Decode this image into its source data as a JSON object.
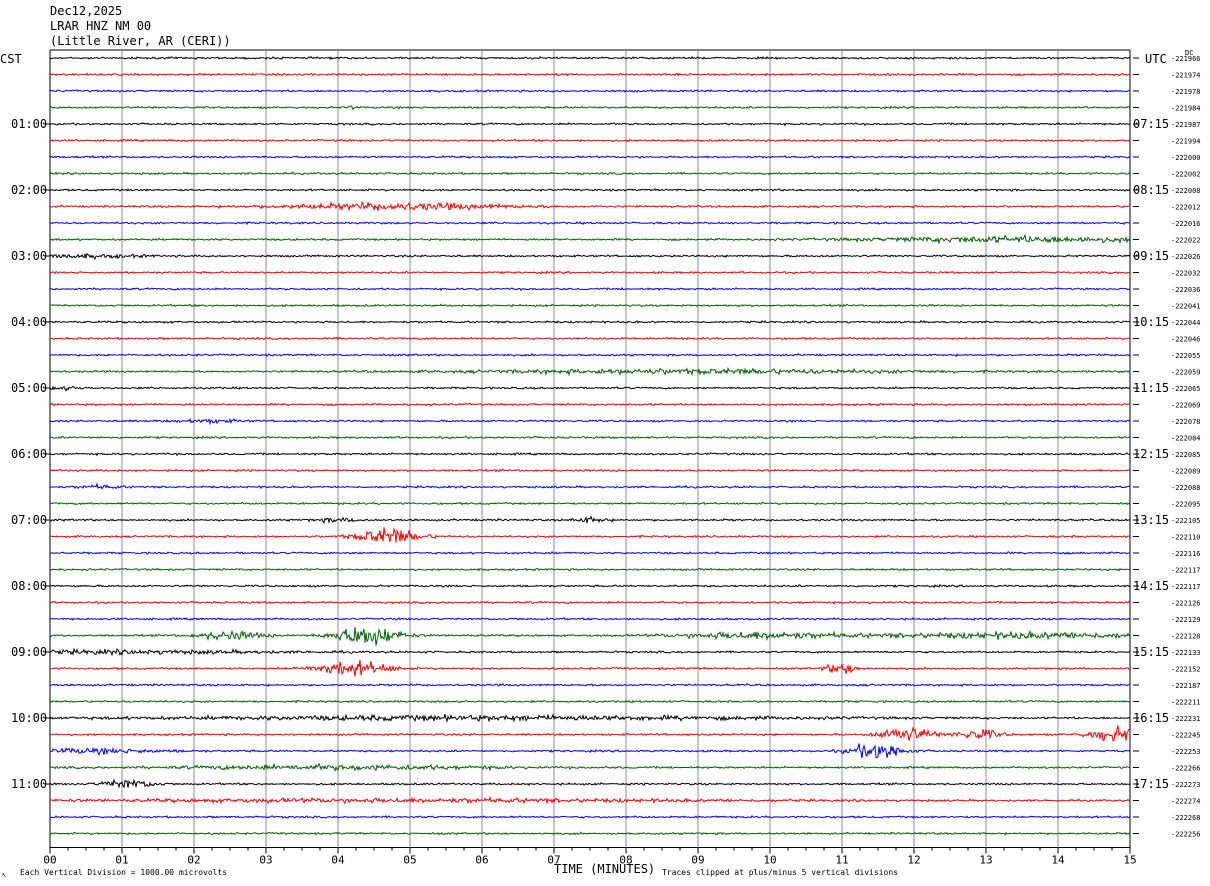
{
  "header": {
    "date": "Dec12,2025",
    "station": "LRAR HNZ NM 00",
    "location": "(Little River, AR (CERI))"
  },
  "left_zone": "CST",
  "right_zone": "UTC",
  "dc_label": "DC",
  "footer": {
    "left": "Each Vertical Division = 1000.00 microvolts",
    "center": "TIME (MINUTES)",
    "right": "Traces clipped at plus/minus 5 vertical divisions",
    "corner": "↖"
  },
  "colors": [
    "#000000",
    "#ff0000",
    "#0000ff",
    "#006400"
  ],
  "chart_data": {
    "type": "line",
    "title": "",
    "xlabel": "TIME (MINUTES)",
    "xlim": [
      0,
      15
    ],
    "x_ticks": [
      "00",
      "01",
      "02",
      "03",
      "04",
      "05",
      "06",
      "07",
      "08",
      "09",
      "10",
      "11",
      "12",
      "13",
      "14",
      "15"
    ],
    "left_hour_labels": [
      "01:00",
      "02:00",
      "03:00",
      "04:00",
      "05:00",
      "06:00",
      "07:00",
      "08:00",
      "09:00",
      "10:00",
      "11:00"
    ],
    "right_hour_labels": [
      "07:15",
      "08:15",
      "09:15",
      "10:15",
      "11:15",
      "12:15",
      "13:15",
      "14:15",
      "15:15",
      "16:15",
      "17:15"
    ],
    "dc_offsets": [
      "-221966",
      "-221974",
      "-221978",
      "-221984",
      "-221987",
      "-221994",
      "-222000",
      "-222002",
      "-222008",
      "-222012",
      "-222016",
      "-222022",
      "-222026",
      "-222032",
      "-222036",
      "-222041",
      "-222044",
      "-222046",
      "-222055",
      "-222059",
      "-222065",
      "-222069",
      "-222078",
      "-222084",
      "-222085",
      "-222089",
      "-222088",
      "-222095",
      "-222105",
      "-222110",
      "-222116",
      "-222117",
      "-222117",
      "-222126",
      "-222129",
      "-222128",
      "-222133",
      "-222152",
      "-222187",
      "-222211",
      "-222231",
      "-222245",
      "-222253",
      "-222266",
      "-222273",
      "-222274",
      "-222268",
      "-222256"
    ],
    "events": [
      {
        "trace": 3,
        "t": 4.2,
        "amp": 4,
        "dur": 0.05
      },
      {
        "trace": 9,
        "t": 4.8,
        "amp": 3,
        "dur": 2.2
      },
      {
        "trace": 11,
        "t": 13.5,
        "amp": 2.5,
        "dur": 3
      },
      {
        "trace": 12,
        "t": 0.4,
        "amp": 1.5,
        "dur": 1.2
      },
      {
        "trace": 19,
        "t": 9.0,
        "amp": 2,
        "dur": 4
      },
      {
        "trace": 20,
        "t": 0.2,
        "amp": 1.5,
        "dur": 0.3
      },
      {
        "trace": 22,
        "t": 2.2,
        "amp": 1.5,
        "dur": 0.6
      },
      {
        "trace": 26,
        "t": 0.7,
        "amp": 1.5,
        "dur": 0.4
      },
      {
        "trace": 28,
        "t": 4.0,
        "amp": 1.5,
        "dur": 0.5
      },
      {
        "trace": 28,
        "t": 7.5,
        "amp": 2.5,
        "dur": 0.3
      },
      {
        "trace": 29,
        "t": 4.7,
        "amp": 8,
        "dur": 0.6
      },
      {
        "trace": 35,
        "t": 2.5,
        "amp": 4,
        "dur": 0.6
      },
      {
        "trace": 35,
        "t": 4.4,
        "amp": 10,
        "dur": 0.6
      },
      {
        "trace": 35,
        "t": 9.8,
        "amp": 3,
        "dur": 1.5
      },
      {
        "trace": 35,
        "t": 13.5,
        "amp": 2.5,
        "dur": 3
      },
      {
        "trace": 36,
        "t": 1.0,
        "amp": 1.5,
        "dur": 3
      },
      {
        "trace": 37,
        "t": 4.2,
        "amp": 7,
        "dur": 0.7
      },
      {
        "trace": 37,
        "t": 11.0,
        "amp": 5,
        "dur": 0.3
      },
      {
        "trace": 40,
        "t": 6.0,
        "amp": 2,
        "dur": 6
      },
      {
        "trace": 41,
        "t": 11.9,
        "amp": 7,
        "dur": 0.5
      },
      {
        "trace": 41,
        "t": 12.9,
        "amp": 5,
        "dur": 0.4
      },
      {
        "trace": 41,
        "t": 14.8,
        "amp": 7,
        "dur": 0.5
      },
      {
        "trace": 42,
        "t": 11.5,
        "amp": 8,
        "dur": 0.5
      },
      {
        "trace": 42,
        "t": 0.5,
        "amp": 2,
        "dur": 1.5
      },
      {
        "trace": 43,
        "t": 4.0,
        "amp": 2,
        "dur": 3
      },
      {
        "trace": 44,
        "t": 1.1,
        "amp": 4,
        "dur": 0.5
      },
      {
        "trace": 45,
        "t": 5.0,
        "amp": 1.5,
        "dur": 6
      }
    ]
  }
}
